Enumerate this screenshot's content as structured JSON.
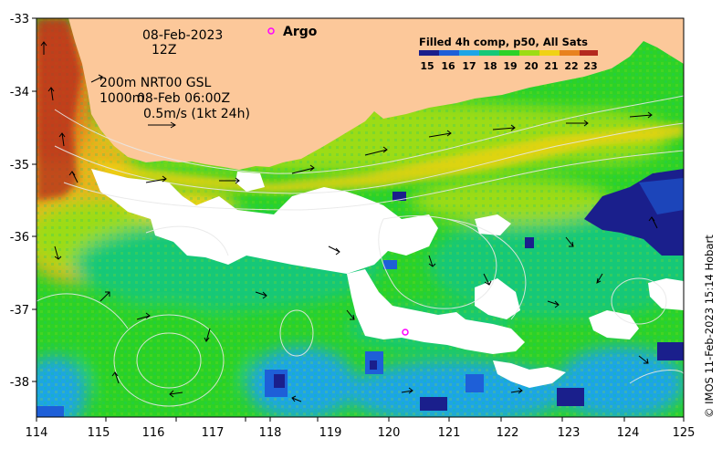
{
  "map": {
    "date": "08-Feb-2023",
    "time": "12Z",
    "current_info_line1": "200m  NRT00 GSL",
    "current_info_line2_depth": "1000m",
    "current_info_line2_time": "08-Feb 06:00Z",
    "scale_label": "0.5m/s (1kt 24h)",
    "argo_label": "Argo",
    "colorbar_title": "Filled 4h comp, p50, All Sats",
    "colorbar_ticks": [
      "15",
      "16",
      "17",
      "18",
      "19",
      "20",
      "21",
      "22",
      "23"
    ],
    "credit": "© IMOS 11-Feb-2023 15:14 Hobart",
    "x_ticks": [
      "114",
      "115",
      "116",
      "117",
      "118",
      "119",
      "120",
      "121",
      "122",
      "123",
      "124",
      "125"
    ],
    "y_ticks": [
      "-33",
      "-34",
      "-35",
      "-36",
      "-37",
      "-38"
    ],
    "colors": {
      "land": "#fcc89a",
      "cloud": "#ffffff",
      "argo_marker": "#ff00ff",
      "sst_15": "#1a1f8c",
      "sst_16": "#1e5fd8",
      "sst_17": "#1ea5e6",
      "sst_18": "#14c878",
      "sst_19": "#2cd228",
      "sst_20": "#9cdc14",
      "sst_21": "#f0d214",
      "sst_22": "#e8821e",
      "sst_23": "#b4281e"
    }
  }
}
